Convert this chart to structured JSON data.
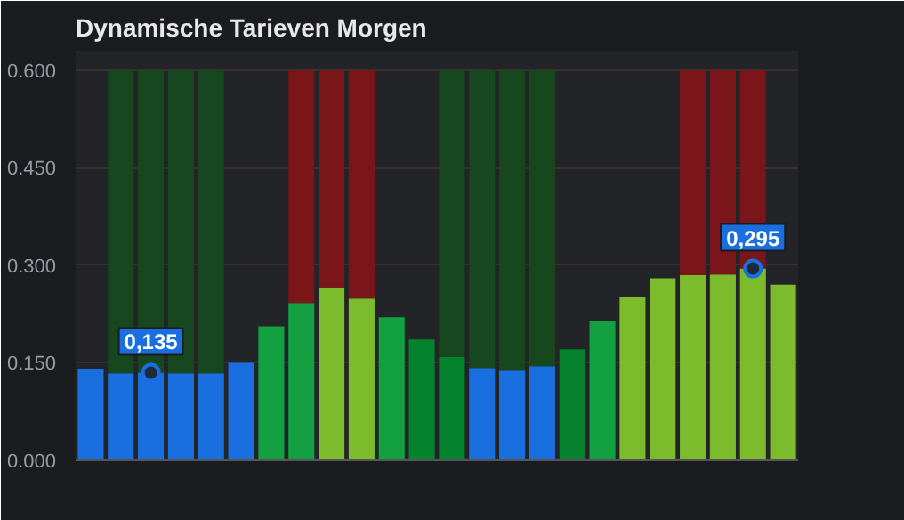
{
  "chart_data": {
    "type": "bar",
    "title": "Dynamische Tarieven Morgen",
    "categories": [
      null,
      null,
      null,
      null,
      null,
      null,
      null,
      null,
      null,
      null,
      null,
      null,
      null,
      null,
      null,
      null,
      null,
      null,
      null,
      null,
      null,
      null,
      null,
      null
    ],
    "stacked": true,
    "series": [
      {
        "values": [
          0.141,
          0.134,
          0.135,
          0.134,
          0.134,
          0.15,
          0.206,
          0.242,
          0.266,
          0.249,
          0.22,
          0.186,
          0.159,
          0.142,
          0.138,
          0.145,
          0.171,
          0.215,
          0.251,
          0.28,
          0.285,
          0.286,
          0.295,
          0.27
        ],
        "colors": [
          "#1a6fe0",
          "#1a6fe0",
          "#1a6fe0",
          "#1a6fe0",
          "#1a6fe0",
          "#1a6fe0",
          "#12a040",
          "#12a040",
          "#7bbb2c",
          "#7bbb2c",
          "#12a040",
          "#05822e",
          "#05822e",
          "#1a6fe0",
          "#1a6fe0",
          "#1a6fe0",
          "#05822e",
          "#12a040",
          "#7bbb2c",
          "#7bbb2c",
          "#7bbb2c",
          "#7bbb2c",
          "#7bbb2c",
          "#7bbb2c"
        ],
        "value_labels": [
          null,
          null,
          "0,135",
          null,
          null,
          null,
          null,
          null,
          null,
          null,
          null,
          null,
          null,
          null,
          null,
          null,
          null,
          null,
          null,
          null,
          null,
          null,
          "0,295",
          null
        ]
      },
      {
        "values": [
          null,
          0.466,
          0.465,
          0.466,
          0.466,
          null,
          null,
          0.358,
          0.334,
          0.351,
          null,
          null,
          0.441,
          0.458,
          0.462,
          0.455,
          null,
          null,
          null,
          null,
          0.315,
          0.314,
          0.305,
          null
        ],
        "colors": [
          null,
          "#16471f",
          "#16471f",
          "#16471f",
          "#16471f",
          null,
          null,
          "#7a161a",
          "#7a161a",
          "#7a161a",
          null,
          null,
          "#16471f",
          "#16471f",
          "#16471f",
          "#16471f",
          null,
          null,
          null,
          null,
          "#7a161a",
          "#7a161a",
          "#7a161a",
          null
        ]
      },
      {
        "type": "scatter",
        "marker": "circle",
        "color": "#1a6fe0",
        "values": [
          null,
          null,
          0.135,
          null,
          null,
          null,
          null,
          null,
          null,
          null,
          null,
          null,
          null,
          null,
          null,
          null,
          null,
          null,
          null,
          null,
          null,
          null,
          0.295,
          null
        ]
      }
    ],
    "ylim": [
      0,
      0.63
    ],
    "yticks": [
      {
        "value": 0,
        "label": "0.000"
      },
      {
        "value": 0.15,
        "label": "0.150"
      },
      {
        "value": 0.3,
        "label": "0.300"
      },
      {
        "value": 0.45,
        "label": "0.450"
      },
      {
        "value": 0.6,
        "label": "0.600"
      }
    ],
    "tick_labels": "y",
    "grid": "y"
  }
}
